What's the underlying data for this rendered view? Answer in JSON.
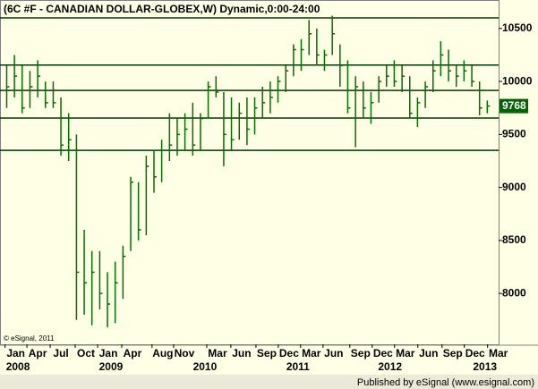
{
  "chart_data": {
    "type": "ohlc",
    "title": "(6C #F - CANADIAN DOLLAR-GLOBEX,W) Dynamic,0:00-24:00",
    "credit": "© eSignal, 2011",
    "footer": "Published by eSignal (www.esignal.com)",
    "color": "#007000",
    "level_color": "#003a00",
    "x": [
      2008.042,
      2008.125,
      2008.208,
      2008.292,
      2008.375,
      2008.458,
      2008.542,
      2008.625,
      2008.708,
      2008.792,
      2008.875,
      2008.958,
      2009.042,
      2009.125,
      2009.208,
      2009.292,
      2009.375,
      2009.458,
      2009.542,
      2009.625,
      2009.708,
      2009.792,
      2009.875,
      2009.958,
      2010.042,
      2010.125,
      2010.208,
      2010.292,
      2010.375,
      2010.458,
      2010.542,
      2010.625,
      2010.708,
      2010.792,
      2010.875,
      2010.958,
      2011.042,
      2011.125,
      2011.208,
      2011.292,
      2011.375,
      2011.458,
      2011.542,
      2011.625,
      2011.708,
      2011.792,
      2011.875,
      2011.958,
      2012.042,
      2012.125,
      2012.208,
      2012.292,
      2012.375,
      2012.458,
      2012.542,
      2012.625,
      2012.708,
      2012.792,
      2012.875,
      2012.958,
      2013.042,
      2013.125,
      2013.208
    ],
    "high": [
      10150,
      10250,
      10150,
      10100,
      10200,
      10000,
      10000,
      9850,
      9700,
      9500,
      8600,
      8400,
      8400,
      8200,
      8300,
      8450,
      9100,
      9050,
      9300,
      9350,
      9450,
      9700,
      9650,
      9700,
      9800,
      9700,
      10000,
      10050,
      9900,
      9850,
      9800,
      9850,
      9850,
      9950,
      10000,
      10050,
      10150,
      10350,
      10400,
      10580,
      10500,
      10300,
      10620,
      10350,
      10200,
      10050,
      10000,
      9900,
      10050,
      10150,
      10200,
      10150,
      10050,
      9850,
      10000,
      10200,
      10380,
      10300,
      10150,
      10200,
      10150,
      10000,
      9820
    ],
    "low": [
      9750,
      9850,
      9700,
      9750,
      9850,
      9750,
      9750,
      9300,
      9250,
      7750,
      7800,
      7700,
      7850,
      7680,
      7720,
      7950,
      8400,
      8500,
      8550,
      8950,
      9050,
      9250,
      9300,
      9350,
      9300,
      9350,
      9650,
      9850,
      9200,
      9350,
      9450,
      9400,
      9500,
      9650,
      9700,
      9800,
      9900,
      10050,
      10100,
      10250,
      10150,
      10100,
      10250,
      9950,
      9700,
      9380,
      9650,
      9600,
      9800,
      9950,
      9950,
      9900,
      9650,
      9570,
      9750,
      9900,
      10050,
      10000,
      9950,
      10000,
      9950,
      9680,
      9700
    ],
    "close": [
      9950,
      10050,
      9750,
      9950,
      10050,
      9800,
      9800,
      9400,
      9450,
      8200,
      8100,
      8200,
      8000,
      7900,
      8100,
      8350,
      9050,
      8600,
      9200,
      9100,
      9350,
      9400,
      9500,
      9550,
      9400,
      9650,
      9950,
      9900,
      9500,
      9450,
      9700,
      9550,
      9750,
      9800,
      9850,
      10000,
      10100,
      10300,
      10300,
      10450,
      10250,
      10250,
      10450,
      10150,
      9750,
      9950,
      9750,
      9800,
      10000,
      10050,
      10000,
      10050,
      9700,
      9800,
      9950,
      10100,
      10250,
      10100,
      10050,
      10100,
      10000,
      9750,
      9768
    ],
    "last_value": 9768,
    "levels": [
      10600,
      10155,
      9915,
      9655,
      9350
    ],
    "xlim": [
      2007.97,
      2013.33
    ],
    "ylim": [
      7520,
      10600
    ],
    "yticks": [
      8000,
      8500,
      9000,
      9500,
      10000,
      10500
    ],
    "xticks": [
      {
        "value": 2008.14,
        "label": "Jan"
      },
      {
        "value": 2008.375,
        "label": "Apr"
      },
      {
        "value": 2008.625,
        "label": "Jul"
      },
      {
        "value": 2008.894,
        "label": "Oct"
      },
      {
        "value": 2009.135,
        "label": "Jan"
      },
      {
        "value": 2009.394,
        "label": "Apr"
      },
      {
        "value": 2009.72,
        "label": "Aug"
      },
      {
        "value": 2009.952,
        "label": "Nov"
      },
      {
        "value": 2010.308,
        "label": "Mar"
      },
      {
        "value": 2010.567,
        "label": "Jun"
      },
      {
        "value": 2010.837,
        "label": "Sep"
      },
      {
        "value": 2011.077,
        "label": "Dec"
      },
      {
        "value": 2011.317,
        "label": "Mar"
      },
      {
        "value": 2011.558,
        "label": "Jun"
      },
      {
        "value": 2011.846,
        "label": "Sep"
      },
      {
        "value": 2012.087,
        "label": "Dec"
      },
      {
        "value": 2012.327,
        "label": "Mar"
      },
      {
        "value": 2012.577,
        "label": "Jun"
      },
      {
        "value": 2012.837,
        "label": "Sep"
      },
      {
        "value": 2013.077,
        "label": "Dec"
      },
      {
        "value": 2013.327,
        "label": "Mar"
      }
    ],
    "year_ticks": [
      {
        "value": 2008.163,
        "label": "2008"
      },
      {
        "value": 2009.163,
        "label": "2009"
      },
      {
        "value": 2010.173,
        "label": "2010"
      },
      {
        "value": 2011.173,
        "label": "2011"
      },
      {
        "value": 2012.163,
        "label": "2012"
      },
      {
        "value": 2013.183,
        "label": "2013"
      }
    ]
  }
}
